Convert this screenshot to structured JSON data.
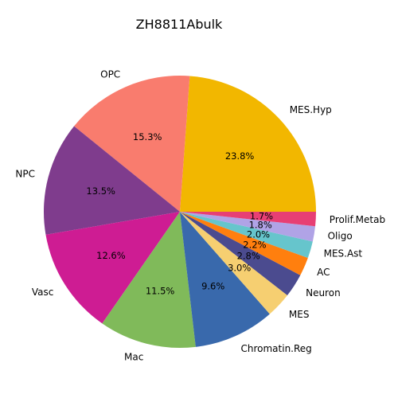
{
  "chart_data": {
    "type": "pie",
    "title": "ZH8811Abulk",
    "slices": [
      {
        "label": "MES.Hyp",
        "value": 23.8,
        "pct_text": "23.8%",
        "color": "#F2B700"
      },
      {
        "label": "OPC",
        "value": 15.3,
        "pct_text": "15.3%",
        "color": "#F97C6E"
      },
      {
        "label": "NPC",
        "value": 13.5,
        "pct_text": "13.5%",
        "color": "#7F3C8D"
      },
      {
        "label": "Vasc",
        "value": 12.6,
        "pct_text": "12.6%",
        "color": "#CE1C93"
      },
      {
        "label": "Mac",
        "value": 11.5,
        "pct_text": "11.5%",
        "color": "#80BA5A"
      },
      {
        "label": "Chromatin.Reg",
        "value": 9.6,
        "pct_text": "9.6%",
        "color": "#3969AC"
      },
      {
        "label": "MES",
        "value": 3.0,
        "pct_text": "3.0%",
        "color": "#F6CF71"
      },
      {
        "label": "Neuron",
        "value": 2.8,
        "pct_text": "2.8%",
        "color": "#4B4B8F"
      },
      {
        "label": "AC",
        "value": 2.2,
        "pct_text": "2.2%",
        "color": "#FF7F0E"
      },
      {
        "label": "MES.Ast",
        "value": 2.0,
        "pct_text": "2.0%",
        "color": "#66C5CC"
      },
      {
        "label": "Oligo",
        "value": 1.8,
        "pct_text": "1.8%",
        "color": "#B0A3E6"
      },
      {
        "label": "Prolif.Metab",
        "value": 1.7,
        "pct_text": "1.7%",
        "color": "#E73F74"
      }
    ],
    "start_angle_deg": 0,
    "direction": "counterclockwise",
    "legend": "none"
  }
}
